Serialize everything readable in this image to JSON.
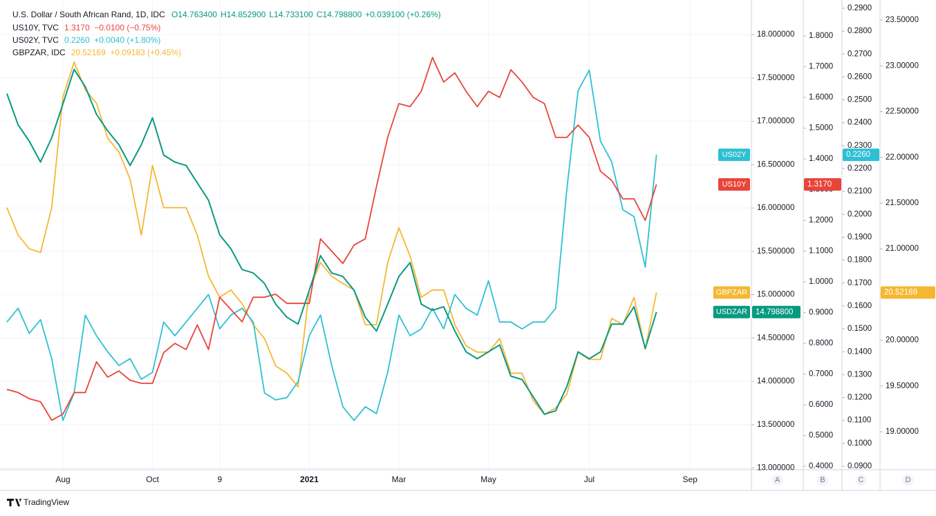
{
  "chart_data": {
    "type": "line",
    "title": "U.S. Dollar / South African Rand, 1D, IDC",
    "ohlc": [
      "O14.763400",
      "H14.852900",
      "L14.733100",
      "C14.798800",
      "+0.039100 (+0.26%)"
    ],
    "legend": [
      {
        "name": "US10Y, TVC",
        "value_text": "1.3170  −0.0100 (−0.75%)",
        "series": 1
      },
      {
        "name": "US02Y, TVC",
        "value_text": "0.2260  +0.0040 (+1.80%)",
        "series": 2
      },
      {
        "name": "GBPZAR, IDC",
        "value_text": "20.52169  +0.09183 (+0.45%)",
        "series": 3
      }
    ],
    "axis_names": [
      "A",
      "B",
      "C",
      "D"
    ],
    "brand": "TradingView",
    "categories": [
      null,
      null,
      null,
      null,
      null,
      "Aug",
      null,
      null,
      null,
      null,
      null,
      null,
      null,
      "Oct",
      null,
      null,
      null,
      null,
      null,
      "9",
      null,
      null,
      null,
      null,
      null,
      null,
      null,
      "2021",
      null,
      null,
      null,
      null,
      null,
      null,
      null,
      "Mar",
      null,
      null,
      null,
      null,
      null,
      null,
      null,
      "May",
      null,
      null,
      null,
      null,
      null,
      null,
      null,
      null,
      "Jul",
      null,
      null,
      null,
      null,
      null,
      null,
      null,
      null,
      "Sep"
    ],
    "ylim": [
      12.98,
      18.4
    ],
    "yticks": [
      {
        "value": 13,
        "label": "13.000000"
      },
      {
        "value": 13.5,
        "label": "13.500000"
      },
      {
        "value": 14,
        "label": "14.000000"
      },
      {
        "value": 14.5,
        "label": "14.500000"
      },
      {
        "value": 15,
        "label": "15.000000"
      },
      {
        "value": 15.5,
        "label": "15.500000"
      },
      {
        "value": 16,
        "label": "16.000000"
      },
      {
        "value": 16.5,
        "label": "16.500000"
      },
      {
        "value": 17,
        "label": "17.000000"
      },
      {
        "value": 17.5,
        "label": "17.500000"
      },
      {
        "value": 18,
        "label": "18.000000"
      }
    ],
    "y2lim": [
      0.389,
      1.917
    ],
    "y2ticks": [
      {
        "value": 0.4,
        "label": "0.4000"
      },
      {
        "value": 0.5,
        "label": "0.5000"
      },
      {
        "value": 0.6,
        "label": "0.6000"
      },
      {
        "value": 0.7,
        "label": "0.7000"
      },
      {
        "value": 0.8,
        "label": "0.8000"
      },
      {
        "value": 0.9,
        "label": "0.9000"
      },
      {
        "value": 1,
        "label": "1.0000"
      },
      {
        "value": 1.1,
        "label": "1.1000"
      },
      {
        "value": 1.2,
        "label": "1.2000"
      },
      {
        "value": 1.3,
        "label": "1.3000"
      },
      {
        "value": 1.4,
        "label": "1.4000"
      },
      {
        "value": 1.5,
        "label": "1.5000"
      },
      {
        "value": 1.6,
        "label": "1.6000"
      },
      {
        "value": 1.7,
        "label": "1.7000"
      },
      {
        "value": 1.8,
        "label": "1.8000"
      }
    ],
    "y3lim": [
      0.0885,
      0.2936
    ],
    "y3ticks": [
      {
        "value": 0.09,
        "label": "0.0900"
      },
      {
        "value": 0.1,
        "label": "0.1000"
      },
      {
        "value": 0.11,
        "label": "0.1100"
      },
      {
        "value": 0.12,
        "label": "0.1200"
      },
      {
        "value": 0.13,
        "label": "0.1300"
      },
      {
        "value": 0.14,
        "label": "0.1400"
      },
      {
        "value": 0.15,
        "label": "0.1500"
      },
      {
        "value": 0.16,
        "label": "0.1600"
      },
      {
        "value": 0.17,
        "label": "0.1700"
      },
      {
        "value": 0.18,
        "label": "0.1800"
      },
      {
        "value": 0.19,
        "label": "0.1900"
      },
      {
        "value": 0.2,
        "label": "0.2000"
      },
      {
        "value": 0.21,
        "label": "0.2100"
      },
      {
        "value": 0.22,
        "label": "0.2200"
      },
      {
        "value": 0.23,
        "label": "0.2300"
      },
      {
        "value": 0.24,
        "label": "0.2400"
      },
      {
        "value": 0.25,
        "label": "0.2500"
      },
      {
        "value": 0.26,
        "label": "0.2600"
      },
      {
        "value": 0.27,
        "label": "0.2700"
      },
      {
        "value": 0.28,
        "label": "0.2800"
      },
      {
        "value": 0.29,
        "label": "0.2900"
      }
    ],
    "y4lim": [
      18.585,
      23.72
    ],
    "y4ticks": [
      {
        "value": 19,
        "label": "19.00000"
      },
      {
        "value": 19.5,
        "label": "19.50000"
      },
      {
        "value": 20,
        "label": "20.00000"
      },
      {
        "value": 20.5,
        "label": "20.50000"
      },
      {
        "value": 21,
        "label": "21.00000"
      },
      {
        "value": 21.5,
        "label": "21.50000"
      },
      {
        "value": 22,
        "label": "22.00000"
      },
      {
        "value": 22.5,
        "label": "22.50000"
      },
      {
        "value": 23,
        "label": "23.00000"
      },
      {
        "value": 23.5,
        "label": "23.50000"
      }
    ],
    "grid": true,
    "series": [
      {
        "name": "USDZAR",
        "color": "#089981",
        "axis": "y",
        "last_label": "14.798800",
        "values": [
          17.32,
          16.96,
          16.77,
          16.53,
          16.81,
          17.2,
          17.6,
          17.4,
          17.08,
          16.89,
          16.73,
          16.49,
          16.73,
          17.04,
          16.61,
          16.53,
          16.49,
          16.29,
          16.09,
          15.69,
          15.53,
          15.29,
          15.25,
          15.13,
          14.89,
          14.74,
          14.66,
          15.05,
          15.45,
          15.25,
          15.21,
          15.05,
          14.74,
          14.58,
          14.89,
          15.21,
          15.37,
          14.89,
          14.82,
          14.86,
          14.58,
          14.34,
          14.26,
          14.34,
          14.42,
          14.06,
          14.02,
          13.82,
          13.62,
          13.66,
          13.94,
          14.34,
          14.26,
          14.34,
          14.66,
          14.66,
          14.86,
          14.38,
          14.7988,
          null,
          null,
          null
        ]
      },
      {
        "name": "US10Y",
        "color": "#e8443a",
        "axis": "y2",
        "last_label": "1.3170",
        "values": [
          0.65,
          0.64,
          0.62,
          0.61,
          0.55,
          0.57,
          0.64,
          0.64,
          0.74,
          0.69,
          0.71,
          0.68,
          0.67,
          0.67,
          0.77,
          0.8,
          0.78,
          0.86,
          0.78,
          0.95,
          0.91,
          0.87,
          0.95,
          0.95,
          0.96,
          0.93,
          0.93,
          0.93,
          1.14,
          1.1,
          1.06,
          1.12,
          1.14,
          1.31,
          1.47,
          1.58,
          1.57,
          1.62,
          1.73,
          1.65,
          1.68,
          1.62,
          1.57,
          1.62,
          1.6,
          1.69,
          1.65,
          1.6,
          1.58,
          1.47,
          1.47,
          1.51,
          1.47,
          1.36,
          1.33,
          1.27,
          1.27,
          1.2,
          1.317,
          null,
          null,
          null
        ]
      },
      {
        "name": "US02Y",
        "color": "#2ebfd3",
        "axis": "y3",
        "last_label": "0.2260",
        "values": [
          0.153,
          0.159,
          0.148,
          0.154,
          0.137,
          0.11,
          0.122,
          0.156,
          0.147,
          0.14,
          0.134,
          0.137,
          0.128,
          0.131,
          0.153,
          0.147,
          0.153,
          0.159,
          0.165,
          0.15,
          0.156,
          0.159,
          0.153,
          0.122,
          0.119,
          0.12,
          0.127,
          0.147,
          0.156,
          0.134,
          0.116,
          0.11,
          0.116,
          0.113,
          0.131,
          0.156,
          0.147,
          0.15,
          0.159,
          0.15,
          0.165,
          0.159,
          0.156,
          0.171,
          0.153,
          0.153,
          0.15,
          0.153,
          0.153,
          0.159,
          0.211,
          0.254,
          0.263,
          0.232,
          0.223,
          0.202,
          0.199,
          0.177,
          0.226,
          null,
          null,
          null
        ]
      },
      {
        "name": "GBPZAR",
        "color": "#f5b731",
        "axis": "y4",
        "last_label": "20.52169",
        "values": [
          21.45,
          21.15,
          21.0,
          20.96,
          21.45,
          22.66,
          23.04,
          22.74,
          22.59,
          22.21,
          22.06,
          21.76,
          21.15,
          21.91,
          21.45,
          21.45,
          21.45,
          21.15,
          20.7,
          20.47,
          20.55,
          20.4,
          20.17,
          20.02,
          19.72,
          19.64,
          19.49,
          20.55,
          20.85,
          20.7,
          20.62,
          20.55,
          20.17,
          20.17,
          20.85,
          21.23,
          20.92,
          20.47,
          20.55,
          20.55,
          20.17,
          19.94,
          19.87,
          19.87,
          20.02,
          19.64,
          19.64,
          19.34,
          19.19,
          19.26,
          19.41,
          19.87,
          19.79,
          19.79,
          20.24,
          20.17,
          20.47,
          19.9,
          20.52169,
          null,
          null,
          null
        ]
      }
    ]
  }
}
